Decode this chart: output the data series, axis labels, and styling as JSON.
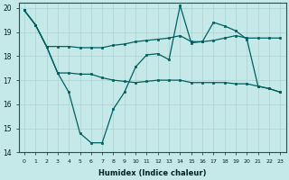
{
  "xlabel": "Humidex (Indice chaleur)",
  "xlim": [
    -0.5,
    23.5
  ],
  "ylim": [
    14,
    20.2
  ],
  "yticks": [
    14,
    15,
    16,
    17,
    18,
    19,
    20
  ],
  "xticks": [
    0,
    1,
    2,
    3,
    4,
    5,
    6,
    7,
    8,
    9,
    10,
    11,
    12,
    13,
    14,
    15,
    16,
    17,
    18,
    19,
    20,
    21,
    22,
    23
  ],
  "bg_color": "#c5e8e8",
  "grid_color": "#b0d0d0",
  "line_color": "#006060",
  "line1_y": [
    19.9,
    19.3,
    18.4,
    18.4,
    18.4,
    18.35,
    18.35,
    18.35,
    18.45,
    18.5,
    18.6,
    18.65,
    18.7,
    18.75,
    18.85,
    18.6,
    18.6,
    18.65,
    18.75,
    18.85,
    18.75,
    18.75,
    18.75,
    18.75
  ],
  "line2_y": [
    19.9,
    19.3,
    18.4,
    17.3,
    16.5,
    14.8,
    14.4,
    14.4,
    15.8,
    16.5,
    17.55,
    18.05,
    18.1,
    17.85,
    20.1,
    18.55,
    18.6,
    19.4,
    19.25,
    19.05,
    18.7,
    16.75,
    16.65,
    16.5
  ],
  "line3_y": [
    19.9,
    19.3,
    18.4,
    17.3,
    17.3,
    17.25,
    17.25,
    17.1,
    17.0,
    16.95,
    16.9,
    16.95,
    17.0,
    17.0,
    17.0,
    16.9,
    16.9,
    16.9,
    16.9,
    16.85,
    16.85,
    16.75,
    16.65,
    16.5
  ],
  "marker_size": 2,
  "line_width": 0.9
}
